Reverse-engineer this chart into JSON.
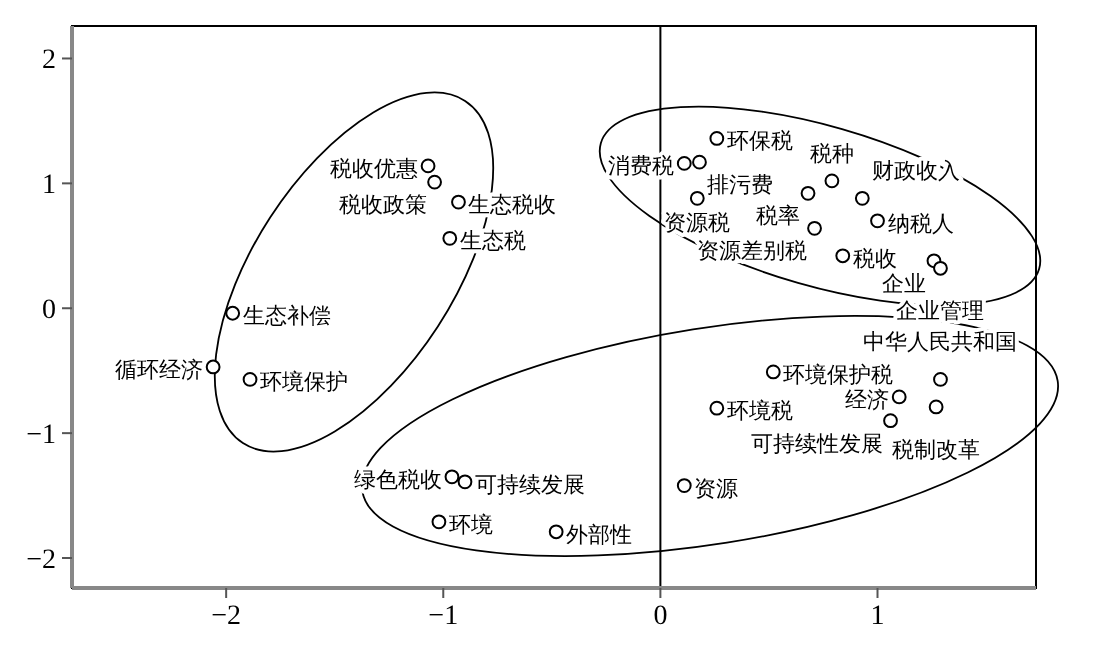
{
  "chart_data": {
    "type": "scatter",
    "marker": "circle",
    "grid": false,
    "xlim": [
      -2.71,
      1.73
    ],
    "ylim": [
      -2.24,
      2.26
    ],
    "xticks": [
      {
        "value": -2,
        "label": "−2"
      },
      {
        "value": -1,
        "label": "−1"
      },
      0,
      1
    ],
    "yticks": [
      {
        "value": -2,
        "label": "−2"
      },
      {
        "value": -1,
        "label": "−1"
      },
      0,
      1,
      2
    ],
    "ref_lines": [
      {
        "axis": "x",
        "value": 0,
        "color": "#000000"
      }
    ],
    "series": [
      {
        "color": "#000000",
        "x": [
          -1.07,
          -1.04,
          -0.93,
          -0.97,
          -1.97,
          -2.06,
          -1.89,
          -0.96,
          -0.9,
          -1.02,
          -0.48,
          0.11,
          0.26,
          0.52,
          1.1,
          1.29,
          1.27,
          1.06,
          0.26,
          0.18,
          0.11,
          0.17,
          0.68,
          0.79,
          0.93,
          1.0,
          0.71,
          0.84,
          1.26,
          1.29
        ],
        "values": [
          1.14,
          1.01,
          0.85,
          0.56,
          -0.04,
          -0.47,
          -0.57,
          -1.35,
          -1.39,
          -1.71,
          -1.79,
          -1.42,
          -0.8,
          -0.51,
          -0.71,
          -0.57,
          -0.79,
          -0.9,
          1.36,
          1.17,
          1.16,
          0.88,
          0.92,
          1.02,
          0.88,
          0.7,
          0.64,
          0.42,
          0.38,
          0.32
        ]
      }
    ],
    "annotations": [
      {
        "text": "税收优惠",
        "x": -1.07,
        "y": 1.14
      },
      {
        "text": "税收政策",
        "x": -1.04,
        "y": 1.01
      },
      {
        "text": "生态税收",
        "x": -0.93,
        "y": 0.85
      },
      {
        "text": "生态税",
        "x": -0.97,
        "y": 0.56
      },
      {
        "text": "生态补偿",
        "x": -1.97,
        "y": -0.04
      },
      {
        "text": "循环经济",
        "x": -2.06,
        "y": -0.47
      },
      {
        "text": "环境保护",
        "x": -1.89,
        "y": -0.57
      },
      {
        "text": "绿色税收",
        "x": -0.96,
        "y": -1.35
      },
      {
        "text": "可持续发展",
        "x": -0.9,
        "y": -1.39
      },
      {
        "text": "环境",
        "x": -1.02,
        "y": -1.71
      },
      {
        "text": "外部性",
        "x": -0.48,
        "y": -1.79
      },
      {
        "text": "资源",
        "x": 0.11,
        "y": -1.42
      },
      {
        "text": "环境税",
        "x": 0.26,
        "y": -0.8
      },
      {
        "text": "环境保护税",
        "x": 0.52,
        "y": -0.51
      },
      {
        "text": "经济",
        "x": 1.1,
        "y": -0.71
      },
      {
        "text": "中华人民共和国",
        "x": 1.29,
        "y": -0.57
      },
      {
        "text": "税制改革",
        "x": 1.27,
        "y": -0.79
      },
      {
        "text": "可持续性发展",
        "x": 1.06,
        "y": -0.9
      },
      {
        "text": "环保税",
        "x": 0.26,
        "y": 1.36
      },
      {
        "text": "排污费",
        "x": 0.18,
        "y": 1.17
      },
      {
        "text": "消费税",
        "x": 0.11,
        "y": 1.16
      },
      {
        "text": "资源税",
        "x": 0.17,
        "y": 0.88
      },
      {
        "text": "税率",
        "x": 0.68,
        "y": 0.92
      },
      {
        "text": "税种",
        "x": 0.79,
        "y": 1.02
      },
      {
        "text": "财政收入",
        "x": 0.93,
        "y": 0.88
      },
      {
        "text": "纳税人",
        "x": 1.0,
        "y": 0.7
      },
      {
        "text": "资源差别税",
        "x": 0.71,
        "y": 0.64
      },
      {
        "text": "税收",
        "x": 0.84,
        "y": 0.42
      },
      {
        "text": "企业",
        "x": 1.26,
        "y": 0.38
      },
      {
        "text": "企业管理",
        "x": 1.29,
        "y": 0.32
      }
    ]
  }
}
